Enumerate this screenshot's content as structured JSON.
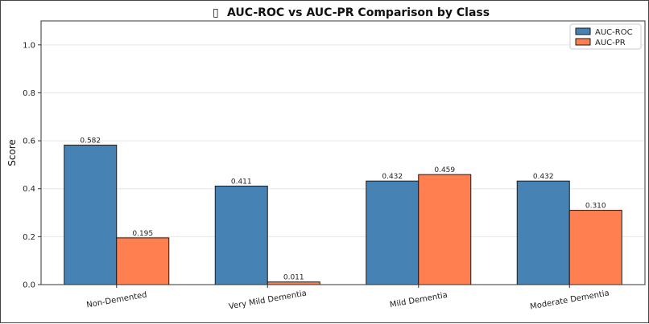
{
  "chart_data": {
    "type": "bar",
    "title": "AUC-ROC vs AUC-PR Comparison by Class",
    "title_icon": "▯",
    "xlabel": "",
    "ylabel": "Score",
    "ylim": [
      0,
      1.1
    ],
    "yticks": [
      "0.0",
      "0.2",
      "0.4",
      "0.6",
      "0.8",
      "1.0"
    ],
    "grid": "horizontal",
    "legend_position": "top-right",
    "categories": [
      "Non-Demented",
      "Very Mild Dementia",
      "Mild Dementia",
      "Moderate Dementia"
    ],
    "series": [
      {
        "name": "AUC-ROC",
        "color": "#4682b4",
        "values": [
          0.582,
          0.411,
          0.432,
          0.432
        ],
        "labels": [
          "0.582",
          "0.411",
          "0.432",
          "0.432"
        ]
      },
      {
        "name": "AUC-PR",
        "color": "#ff7f50",
        "values": [
          0.195,
          0.011,
          0.459,
          0.31
        ],
        "labels": [
          "0.195",
          "0.011",
          "0.459",
          "0.310"
        ]
      }
    ]
  }
}
